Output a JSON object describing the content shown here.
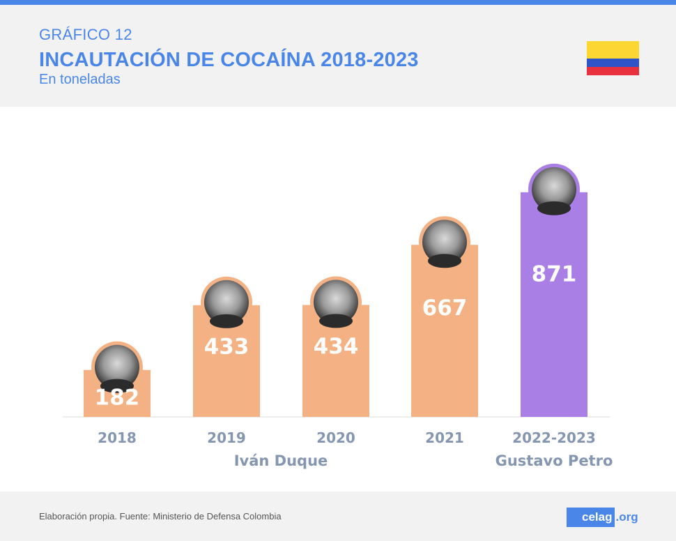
{
  "header": {
    "kicker": "GRÁFICO 12",
    "title": "INCAUTACIÓN DE COCAÍNA 2018-2023",
    "subtitle": "En toneladas",
    "flag_colors": [
      "#fcd734",
      "#2f54c8",
      "#e8303f"
    ]
  },
  "chart_data": {
    "type": "bar",
    "title": "INCAUTACIÓN DE COCAÍNA 2018-2023",
    "ylabel": "",
    "categories": [
      "2018",
      "2019",
      "2020",
      "2021",
      "2022-2023"
    ],
    "values": [
      182,
      433,
      434,
      667,
      871
    ],
    "bar_colors": [
      "#f4b183",
      "#f4b183",
      "#f4b183",
      "#f4b183",
      "#a97fe6"
    ],
    "groups": [
      {
        "label": "Iván Duque",
        "from": 0,
        "to": 3
      },
      {
        "label": "Gustavo Petro",
        "from": 4,
        "to": 4
      }
    ],
    "ylim": [
      0,
      1000
    ],
    "grid": false
  },
  "footer": {
    "source": "Elaboración propia. Fuente: Ministerio de Defensa Colombia",
    "logo_main": "celag",
    "logo_ext": ".org"
  }
}
